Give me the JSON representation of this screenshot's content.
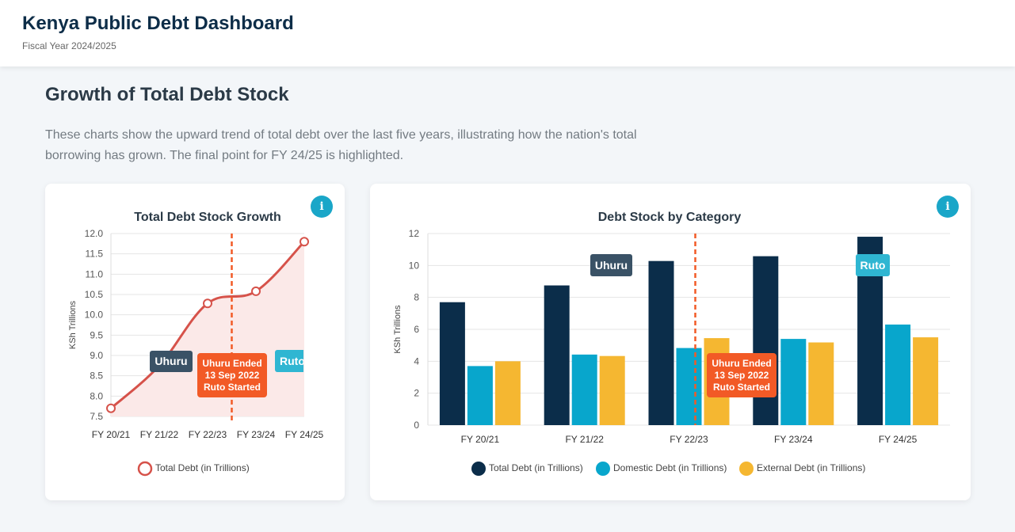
{
  "header": {
    "title": "Kenya Public Debt Dashboard",
    "subtitle": "Fiscal Year 2024/2025"
  },
  "section": {
    "title": "Growth of Total Debt Stock",
    "description": "These charts show the upward trend of total debt over the last five years, illustrating how the nation's total borrowing has grown. The final point for FY 24/25 is highlighted."
  },
  "info_icon_glyph": "i",
  "colors": {
    "navy": "#0b2d4a",
    "teal": "#08a6cc",
    "amber": "#f5b731",
    "line": "#d6524a",
    "line_fill": "#fbe9e8",
    "annotation_orange": "#f25a26",
    "uhuru_label": "#3a5266",
    "ruto_label": "#2fb6d2"
  },
  "chart_data": [
    {
      "type": "line",
      "title": "Total Debt Stock Growth",
      "ylabel": "KSh Trillions",
      "categories": [
        "FY 20/21",
        "FY 21/22",
        "FY 22/23",
        "FY 23/24",
        "FY 24/25"
      ],
      "ylim": [
        7.5,
        12.0
      ],
      "yticks": [
        "12.0",
        "11.5",
        "11.0",
        "10.5",
        "10.0",
        "9.5",
        "9.0",
        "8.5",
        "8.0",
        "7.5"
      ],
      "grid": true,
      "series": [
        {
          "name": "Total Debt (in Trillions)",
          "values": [
            7.7,
            8.75,
            10.28,
            10.58,
            11.8
          ]
        }
      ],
      "legend": "bottom",
      "annotations": {
        "transition_line": "between FY 22/23 and FY 23/24",
        "uhuru_label": "Uhuru",
        "ruto_label": "Ruto",
        "transition_lines": [
          "Uhuru Ended",
          "13 Sep 2022",
          "Ruto Started"
        ]
      }
    },
    {
      "type": "bar",
      "title": "Debt Stock by Category",
      "ylabel": "KSh Trillions",
      "categories": [
        "FY 20/21",
        "FY 21/22",
        "FY 22/23",
        "FY 23/24",
        "FY 24/25"
      ],
      "ylim": [
        0,
        12
      ],
      "yticks": [
        "12",
        "10",
        "8",
        "6",
        "4",
        "2",
        "0"
      ],
      "grid": true,
      "series": [
        {
          "name": "Total Debt (in Trillions)",
          "values": [
            7.7,
            8.75,
            10.28,
            10.58,
            11.8
          ]
        },
        {
          "name": "Domestic Debt (in Trillions)",
          "values": [
            3.7,
            4.42,
            4.83,
            5.4,
            6.3
          ]
        },
        {
          "name": "External Debt (in Trillions)",
          "values": [
            4.0,
            4.33,
            5.45,
            5.18,
            5.5
          ]
        }
      ],
      "legend": "bottom",
      "annotations": {
        "transition_line": "between FY 22/23 and FY 23/24",
        "uhuru_label": "Uhuru",
        "ruto_label": "Ruto",
        "transition_lines": [
          "Uhuru Ended",
          "13 Sep 2022",
          "Ruto Started"
        ]
      }
    }
  ]
}
